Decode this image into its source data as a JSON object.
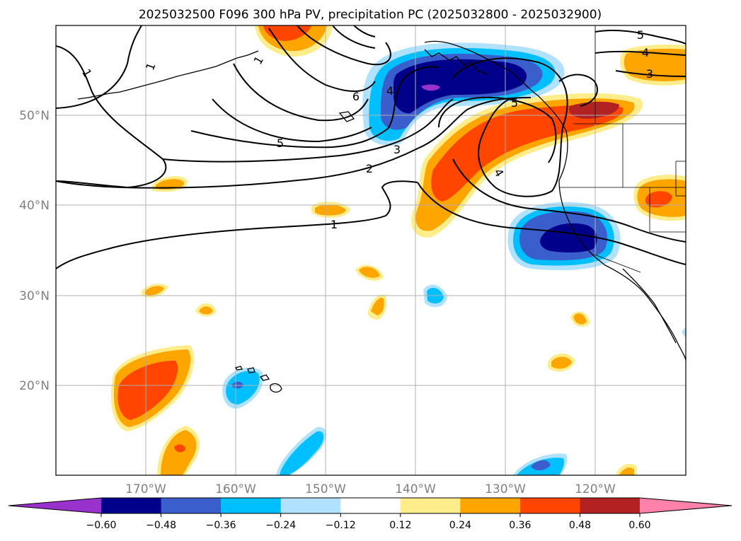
{
  "title": "2025032500 F096 300 hPa PV, precipitation PC (2025032800 - 2025032900)",
  "lat_ticks": [
    "50°N",
    "40°N",
    "30°N",
    "20°N"
  ],
  "lon_ticks": [
    "170°W",
    "160°W",
    "150°W",
    "140°W",
    "130°W",
    "120°W"
  ],
  "colorbar": {
    "tick_labels": [
      "−0.60",
      "−0.48",
      "−0.36",
      "−0.24",
      "−0.12",
      "0.12",
      "0.24",
      "0.36",
      "0.48",
      "0.60"
    ],
    "colors": [
      "#9932cc",
      "#00008b",
      "#3a5fcd",
      "#00bfff",
      "#b0e2ff",
      "#ffffff",
      "#ffec8b",
      "#ffa500",
      "#ff4500",
      "#b22222",
      "#ff82ab"
    ]
  },
  "contour_labels": {
    "pv_1a": "1",
    "pv_1b": "1",
    "pv_1c": "1",
    "pv_1d": "1",
    "pv_2": "2",
    "pv_3": "3",
    "pv_4": "4",
    "pv_5": "5",
    "pv_6": "6",
    "pv_3e": "3",
    "pv_4e": "4",
    "pv_5e": "5",
    "pv_5b": "5",
    "pv_4b": "4"
  },
  "map_extent": {
    "lon": [
      -180,
      -110
    ],
    "lat": [
      10,
      60
    ]
  }
}
